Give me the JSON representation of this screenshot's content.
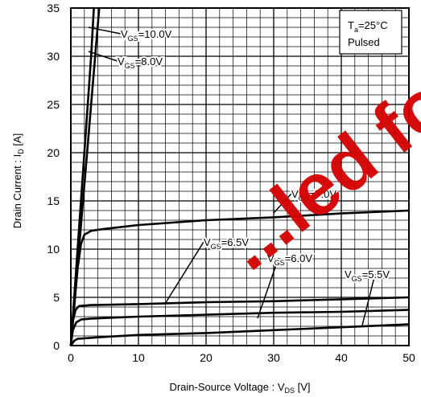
{
  "chart_data": {
    "type": "line",
    "xlabel": {
      "main": "Drain-Source Voltage : V",
      "sub": "DS",
      "unit": " [V]"
    },
    "ylabel": {
      "main": "Drain Current : I",
      "sub": "D",
      "unit": " [A]"
    },
    "xlim": [
      0,
      50
    ],
    "ylim": [
      0,
      35
    ],
    "x_ticks": [
      "0",
      "10",
      "20",
      "30",
      "40",
      "50"
    ],
    "y_ticks": [
      "0",
      "5",
      "10",
      "15",
      "20",
      "25",
      "30",
      "35"
    ],
    "grid": true,
    "conditions": {
      "line1": {
        "main": "T",
        "sub": "a",
        "rest": "=25°C"
      },
      "line2": "Pulsed"
    },
    "watermark": "...led for",
    "series": [
      {
        "name": "VGS=10.0V",
        "label_main": "V",
        "label_sub": "GS",
        "label_rest": "=10.0V",
        "points": [
          [
            0,
            0
          ],
          [
            0.5,
            5
          ],
          [
            1,
            10
          ],
          [
            1.5,
            15
          ],
          [
            2,
            20
          ],
          [
            2.5,
            25
          ],
          [
            3,
            30
          ],
          [
            3.4,
            35
          ]
        ]
      },
      {
        "name": "VGS=8.0V",
        "label_main": "V",
        "label_sub": "GS",
        "label_rest": "=8.0V",
        "points": [
          [
            0,
            0
          ],
          [
            0.6,
            5
          ],
          [
            1.2,
            10
          ],
          [
            1.8,
            15
          ],
          [
            2.4,
            20
          ],
          [
            3,
            25
          ],
          [
            3.6,
            30
          ],
          [
            4.2,
            35
          ]
        ]
      },
      {
        "name": "VGS=7.0V",
        "label_main": "V",
        "label_sub": "GS",
        "label_rest": "=7.0V",
        "points": [
          [
            0,
            0
          ],
          [
            0.5,
            4
          ],
          [
            1,
            8
          ],
          [
            1.5,
            10.5
          ],
          [
            2,
            11.5
          ],
          [
            3,
            11.9
          ],
          [
            5,
            12.1
          ],
          [
            10,
            12.5
          ],
          [
            20,
            13
          ],
          [
            30,
            13.3
          ],
          [
            40,
            13.7
          ],
          [
            50,
            14
          ]
        ]
      },
      {
        "name": "VGS=6.5V",
        "label_main": "V",
        "label_sub": "GS",
        "label_rest": "=6.5V",
        "points": [
          [
            0,
            0
          ],
          [
            0.3,
            2.5
          ],
          [
            0.7,
            3.7
          ],
          [
            1.2,
            4.1
          ],
          [
            3,
            4.2
          ],
          [
            10,
            4.3
          ],
          [
            20,
            4.5
          ],
          [
            30,
            4.6
          ],
          [
            40,
            4.8
          ],
          [
            50,
            5
          ]
        ]
      },
      {
        "name": "VGS=6.0V",
        "label_main": "V",
        "label_sub": "GS",
        "label_rest": "=6.0V",
        "points": [
          [
            0,
            0
          ],
          [
            0.3,
            1.6
          ],
          [
            0.8,
            2.4
          ],
          [
            1.5,
            2.7
          ],
          [
            3,
            2.8
          ],
          [
            10,
            3
          ],
          [
            20,
            3.2
          ],
          [
            30,
            3.4
          ],
          [
            40,
            3.5
          ],
          [
            50,
            3.7
          ]
        ]
      },
      {
        "name": "VGS=5.5V",
        "label_main": "V",
        "label_sub": "GS",
        "label_rest": "=5.5V",
        "points": [
          [
            0,
            0
          ],
          [
            0.5,
            0.5
          ],
          [
            1,
            0.7
          ],
          [
            5,
            0.9
          ],
          [
            10,
            1.1
          ],
          [
            20,
            1.3
          ],
          [
            30,
            1.6
          ],
          [
            40,
            1.9
          ],
          [
            50,
            2.2
          ]
        ]
      }
    ]
  }
}
